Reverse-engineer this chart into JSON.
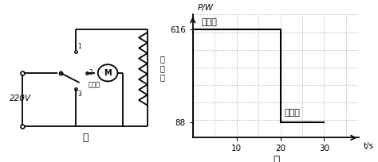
{
  "graph_title": "乙",
  "ylabel": "P/W",
  "xlabel": "t/s",
  "y_ticks": [
    88,
    616
  ],
  "x_ticks": [
    10,
    20,
    30
  ],
  "xlim": [
    0,
    38
  ],
  "ylim": [
    0,
    700
  ],
  "hot_label": "热风档",
  "cool_label": "凉风档",
  "hot_power": 616,
  "cool_power": 88,
  "t_hot_end": 20,
  "t_cool_end": 30,
  "line_color": "#000000",
  "bg_color": "#ffffff"
}
